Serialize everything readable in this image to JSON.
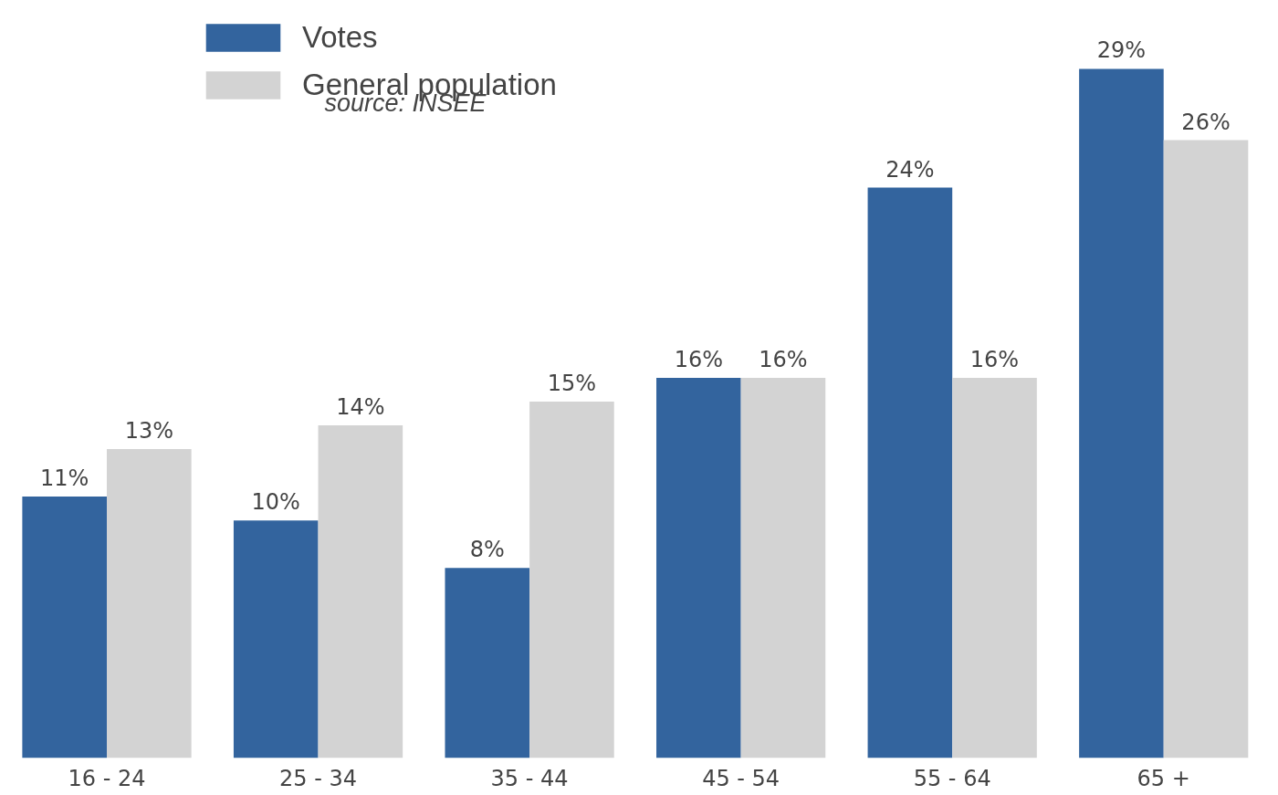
{
  "chart_data": {
    "type": "bar",
    "categories": [
      "16 - 24",
      "25 - 34",
      "35 - 44",
      "45 - 54",
      "55 - 64",
      "65 +"
    ],
    "series": [
      {
        "name": "Votes",
        "color": "#33649e",
        "values": [
          11,
          10,
          8,
          16,
          24,
          29
        ],
        "value_labels": [
          "11%",
          "10%",
          "8%",
          "16%",
          "24%",
          "29%"
        ]
      },
      {
        "name": "General population",
        "color": "#d3d3d3",
        "values": [
          13,
          14,
          15,
          16,
          16,
          26
        ],
        "value_labels": [
          "13%",
          "14%",
          "15%",
          "16%",
          "16%",
          "26%"
        ]
      }
    ],
    "annotations": [
      "source: INSEE"
    ],
    "legend": "top left",
    "grid": false,
    "tick_labels": "x"
  }
}
